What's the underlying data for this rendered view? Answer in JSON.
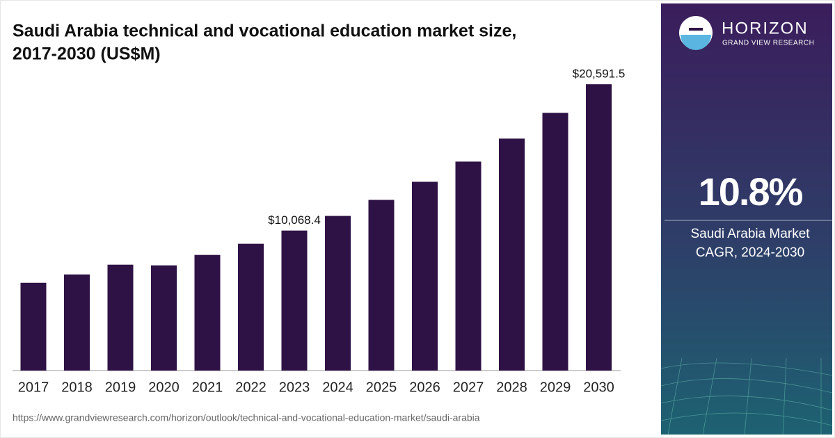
{
  "chart_data": {
    "type": "bar",
    "title": "Saudi Arabia technical and vocational education market size,",
    "subtitle": "2017-2030 (US$M)",
    "categories": [
      "2017",
      "2018",
      "2019",
      "2020",
      "2021",
      "2022",
      "2023",
      "2024",
      "2025",
      "2026",
      "2027",
      "2028",
      "2029",
      "2030"
    ],
    "values": [
      6312,
      6913,
      7615,
      7565,
      8316,
      9118,
      10068.4,
      11121,
      12274,
      13576,
      15029,
      16682,
      18536,
      20591.5
    ],
    "value_labels": [
      null,
      null,
      null,
      null,
      null,
      null,
      "$10,068.4",
      null,
      null,
      null,
      null,
      null,
      null,
      "$20,591.5"
    ],
    "color": "#2f1245",
    "ylim": [
      0,
      22000
    ],
    "source": "https://www.grandviewresearch.com/horizon/outlook/technical-and-vocational-education-market/saudi-arabia"
  },
  "panel": {
    "brand": "HORIZON",
    "brand_sub": "GRAND VIEW RESEARCH",
    "stat": "10.8%",
    "stat_line1": "Saudi Arabia Market",
    "stat_line2": "CAGR, 2024-2030"
  }
}
